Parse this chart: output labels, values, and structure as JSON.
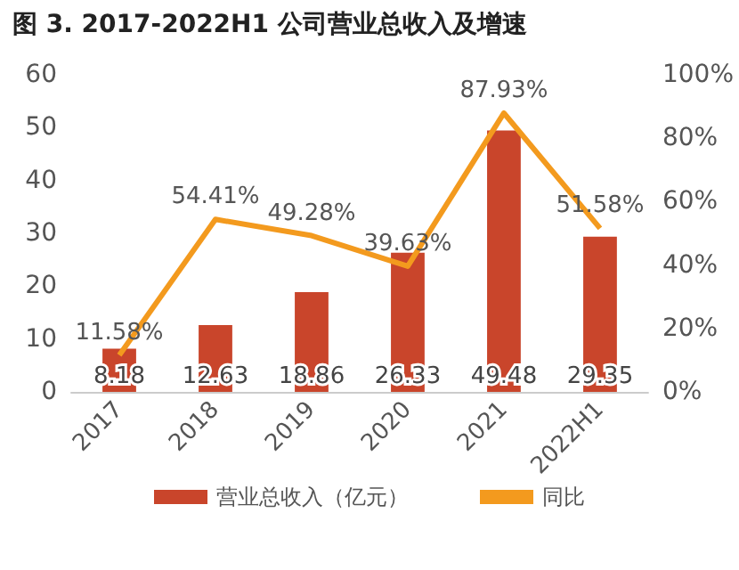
{
  "chart_data": {
    "type": "bar",
    "title": "图 3. 2017-2022H1 公司营业总收入及增速",
    "categories": [
      "2017",
      "2018",
      "2019",
      "2020",
      "2021",
      "2022H1"
    ],
    "series": [
      {
        "name": "营业总收入（亿元）",
        "color": "#c9452b",
        "values": [
          8.18,
          12.63,
          18.86,
          26.33,
          49.48,
          29.35
        ],
        "value_labels": [
          "8.18",
          "12.63",
          "18.86",
          "26.33",
          "49.48",
          "29.35"
        ]
      },
      {
        "name": "同比",
        "type": "line",
        "axis": "y2",
        "color": "#f39a1e",
        "values": [
          11.58,
          54.41,
          49.28,
          39.63,
          87.93,
          51.58
        ],
        "value_labels": [
          "11.58%",
          "54.41%",
          "49.28%",
          "39.63%",
          "87.93%",
          "51.58%"
        ]
      }
    ],
    "ylim": [
      0,
      60
    ],
    "yticks": [
      0,
      10,
      20,
      30,
      40,
      50,
      60
    ],
    "y2lim": [
      0,
      100
    ],
    "y2ticks": [
      {
        "value": 0,
        "label": "0%"
      },
      {
        "value": 20,
        "label": "20%"
      },
      {
        "value": 40,
        "label": "40%"
      },
      {
        "value": 60,
        "label": "60%"
      },
      {
        "value": 80,
        "label": "80%"
      },
      {
        "value": 100,
        "label": "100%"
      }
    ],
    "grid": false,
    "legend": "bottom",
    "marker": "none",
    "line_style": "solid"
  }
}
